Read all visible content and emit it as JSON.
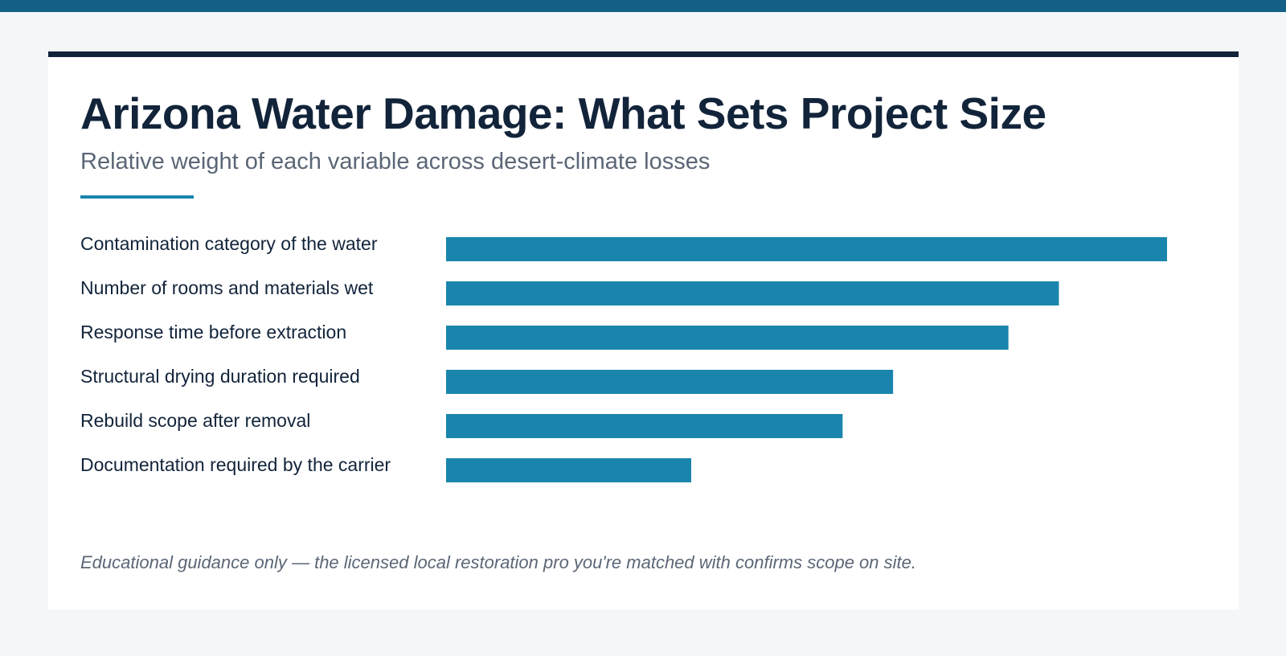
{
  "colors": {
    "top_band": "#135f86",
    "card_border": "#12243a",
    "title": "#12243a",
    "subtitle": "#5b6676",
    "accent": "#1985ad",
    "bar": "#1985ad",
    "label": "#12243a",
    "background": "#f4f7f9"
  },
  "chart_data": {
    "type": "bar",
    "orientation": "horizontal",
    "title": "Arizona Water Damage: What Sets Project Size",
    "subtitle": "Relative weight of each variable across desert-climate losses",
    "categories": [
      "Contamination category of the water",
      "Number of rooms and materials wet",
      "Response time before extraction",
      "Structural drying duration required",
      "Rebuild scope after removal",
      "Documentation required by the carrier"
    ],
    "values": [
      100,
      85,
      78,
      62,
      55,
      34
    ],
    "xlim": [
      0,
      100
    ],
    "xlabel": "",
    "ylabel": "",
    "grid": false,
    "legend": "none"
  },
  "footnote": "Educational guidance only — the licensed local restoration pro you're matched with confirms scope on site."
}
